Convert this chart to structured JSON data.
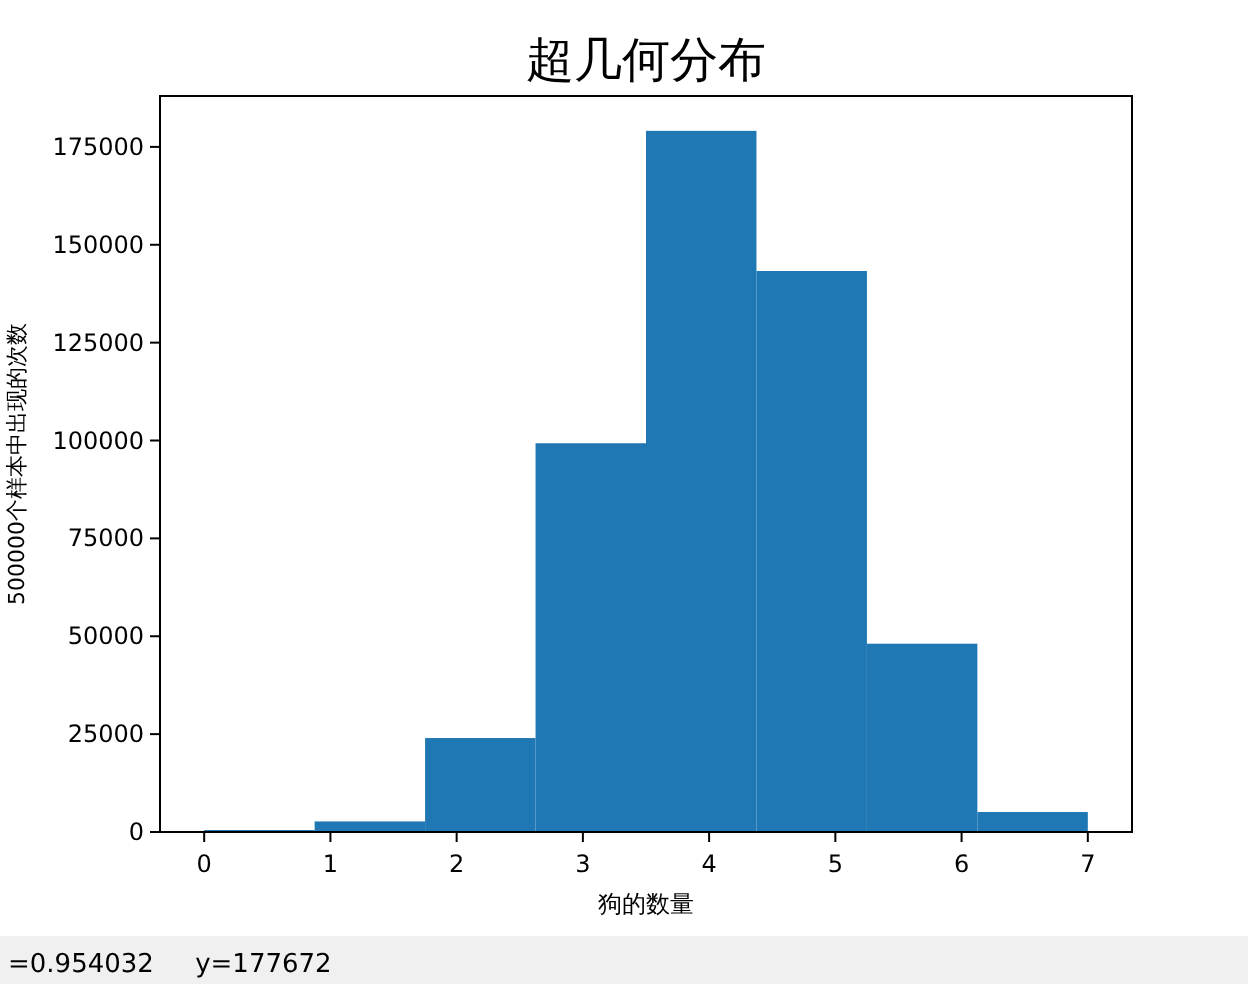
{
  "chart_data": {
    "type": "histogram",
    "title": "超几何分布",
    "xlabel": "狗的数量",
    "ylabel": "500000个样本中出现的次数",
    "bins": [
      0,
      0.875,
      1.75,
      2.625,
      3.5,
      4.375,
      5.25,
      6.125,
      7
    ],
    "values": [
      500,
      2700,
      24000,
      99300,
      179100,
      143300,
      48100,
      5100
    ],
    "color": "#1f77b4",
    "xlim": [
      -0.35,
      7.35
    ],
    "xticks": [
      0,
      1,
      2,
      3,
      4,
      5,
      6,
      7
    ],
    "ylim": [
      0,
      188000
    ],
    "yticks": [
      0,
      25000,
      50000,
      75000,
      100000,
      125000,
      150000,
      175000
    ],
    "grid": false,
    "annotations": [
      "=0.954032     y=177672"
    ]
  }
}
